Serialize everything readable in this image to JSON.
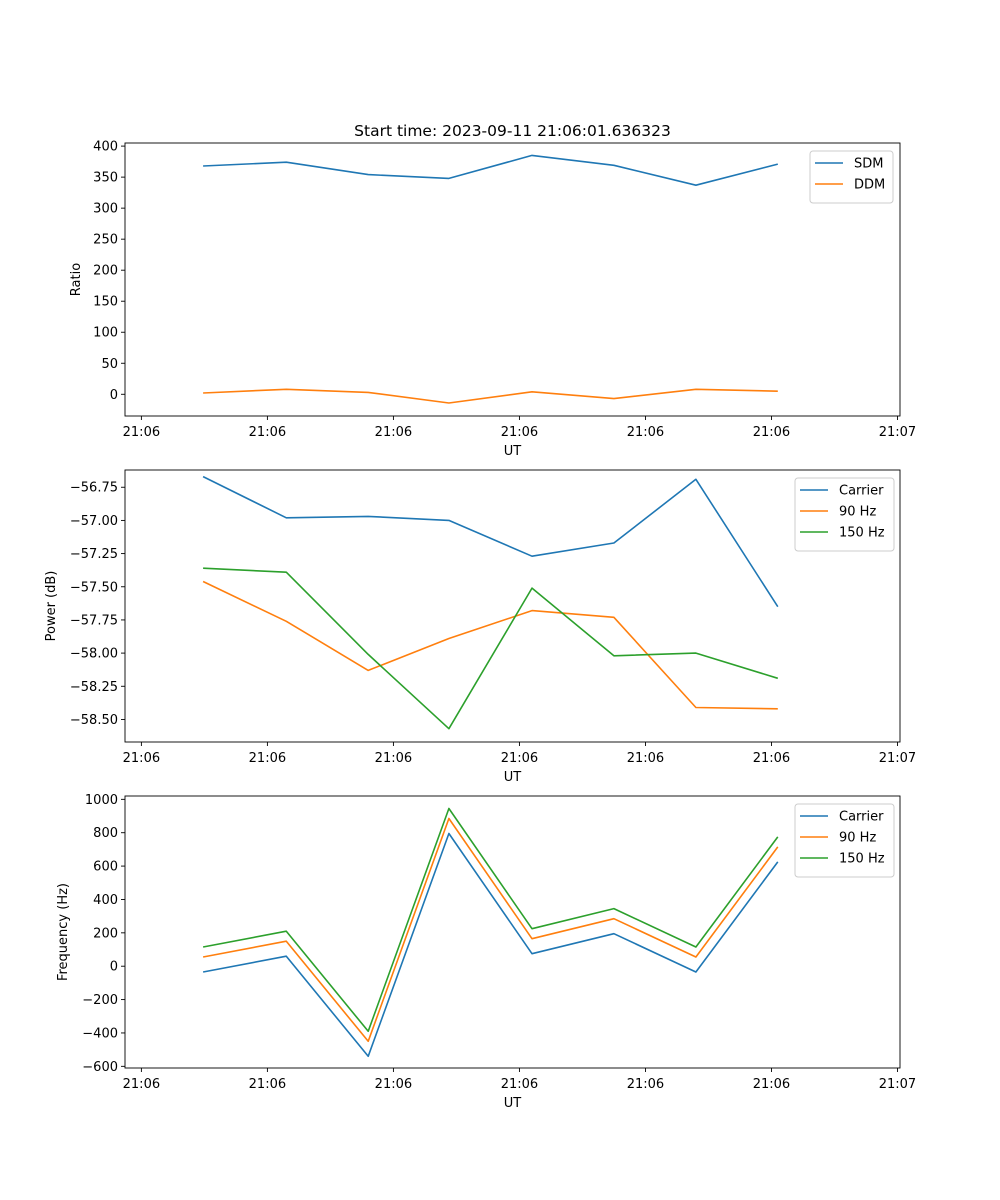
{
  "title": "Start time: 2023-09-11 21:06:01.636323",
  "x_tick_labels": [
    "21:06",
    "21:06",
    "21:06",
    "21:06",
    "21:06",
    "21:06",
    "21:07"
  ],
  "x_tick_positions": [
    0,
    1,
    2,
    3,
    4,
    5,
    6
  ],
  "xlim": [
    -0.13,
    6.02
  ],
  "colors": {
    "blue": "#1f77b4",
    "orange": "#ff7f0e",
    "green": "#2ca02c"
  },
  "chart_data": [
    {
      "type": "line",
      "title": "Start time: 2023-09-11 21:06:01.636323",
      "xlabel": "UT",
      "ylabel": "Ratio",
      "ylim": [
        -35,
        405
      ],
      "yticks": [
        0,
        50,
        100,
        150,
        200,
        250,
        300,
        350,
        400
      ],
      "ytick_labels": [
        "0",
        "50",
        "100",
        "150",
        "200",
        "250",
        "300",
        "350",
        "400"
      ],
      "legend": "top-right",
      "x": [
        0.49,
        1.15,
        1.8,
        2.44,
        3.1,
        3.75,
        4.4,
        5.05
      ],
      "series": [
        {
          "name": "SDM",
          "color": "#1f77b4",
          "values": [
            368,
            374,
            354,
            348,
            385,
            369,
            337,
            371
          ]
        },
        {
          "name": "DDM",
          "color": "#ff7f0e",
          "values": [
            2,
            8,
            3,
            -14,
            4,
            -7,
            8,
            5
          ]
        }
      ]
    },
    {
      "type": "line",
      "xlabel": "UT",
      "ylabel": "Power (dB)",
      "ylim": [
        -58.67,
        -56.62
      ],
      "yticks": [
        -58.5,
        -58.25,
        -58.0,
        -57.75,
        -57.5,
        -57.25,
        -57.0,
        -56.75
      ],
      "ytick_labels": [
        "−58.50",
        "−58.25",
        "−58.00",
        "−57.75",
        "−57.50",
        "−57.25",
        "−57.00",
        "−56.75"
      ],
      "legend": "top-right",
      "x": [
        0.49,
        1.15,
        1.8,
        2.44,
        3.1,
        3.75,
        4.4,
        5.05
      ],
      "series": [
        {
          "name": "Carrier",
          "color": "#1f77b4",
          "values": [
            -56.67,
            -56.98,
            -56.97,
            -57.0,
            -57.27,
            -57.17,
            -56.69,
            -57.65
          ]
        },
        {
          "name": "90 Hz",
          "color": "#ff7f0e",
          "values": [
            -57.46,
            -57.76,
            -58.13,
            -57.89,
            -57.68,
            -57.73,
            -58.41,
            -58.42
          ]
        },
        {
          "name": "150 Hz",
          "color": "#2ca02c",
          "values": [
            -57.36,
            -57.39,
            -58.01,
            -58.57,
            -57.51,
            -58.02,
            -58.0,
            -58.19
          ]
        }
      ]
    },
    {
      "type": "line",
      "xlabel": "UT",
      "ylabel": "Frequency (Hz)",
      "ylim": [
        -610,
        1020
      ],
      "yticks": [
        -600,
        -400,
        -200,
        0,
        200,
        400,
        600,
        800,
        1000
      ],
      "ytick_labels": [
        "−600",
        "−400",
        "−200",
        "0",
        "200",
        "400",
        "600",
        "800",
        "1000"
      ],
      "legend": "top-right",
      "x": [
        0.49,
        1.15,
        1.8,
        2.44,
        3.1,
        3.75,
        4.4,
        5.05
      ],
      "series": [
        {
          "name": "Carrier",
          "color": "#1f77b4",
          "values": [
            -35,
            60,
            -540,
            795,
            75,
            195,
            -35,
            625
          ]
        },
        {
          "name": "90 Hz",
          "color": "#ff7f0e",
          "values": [
            55,
            150,
            -450,
            885,
            165,
            285,
            55,
            715
          ]
        },
        {
          "name": "150 Hz",
          "color": "#2ca02c",
          "values": [
            115,
            210,
            -390,
            945,
            225,
            345,
            115,
            775
          ]
        }
      ]
    }
  ]
}
